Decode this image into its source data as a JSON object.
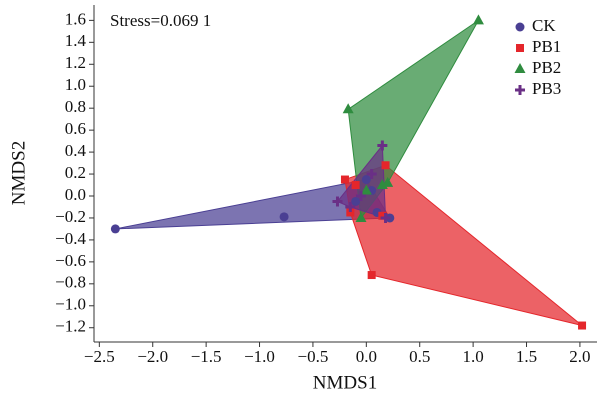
{
  "chart_data": {
    "type": "scatter",
    "annotation": "Stress=0.069 1",
    "x_label": "NMDS1",
    "y_label": "NMDS2",
    "hulls": true,
    "legend": "upper right",
    "xlim": [
      -2.55,
      2.16
    ],
    "ylim": [
      -1.33,
      1.74
    ],
    "xticks": [
      {
        "value": -2.5,
        "label": "−2.5"
      },
      {
        "value": -2.0,
        "label": "−2.0"
      },
      {
        "value": -1.5,
        "label": "−1.5"
      },
      {
        "value": -1.0,
        "label": "−1.0"
      },
      {
        "value": -0.5,
        "label": "−0.5"
      },
      {
        "value": 0,
        "label": "0.0"
      },
      {
        "value": 0.5,
        "label": "0.5"
      },
      {
        "value": 1.0,
        "label": "1.0"
      },
      {
        "value": 1.5,
        "label": "1.5"
      },
      {
        "value": 2.0,
        "label": "2.0"
      }
    ],
    "yticks": [
      {
        "value": 1.6,
        "label": "1.6"
      },
      {
        "value": 1.4,
        "label": "1.4"
      },
      {
        "value": 1.2,
        "label": "1.2"
      },
      {
        "value": 1.0,
        "label": "1.0"
      },
      {
        "value": 0.8,
        "label": "0.8"
      },
      {
        "value": 0.6,
        "label": "0.6"
      },
      {
        "value": 0.4,
        "label": "0.4"
      },
      {
        "value": 0.2,
        "label": "0.2"
      },
      {
        "value": 0,
        "label": "0.0"
      },
      {
        "value": -0.2,
        "label": "−0.2"
      },
      {
        "value": -0.4,
        "label": "−0.4"
      },
      {
        "value": -0.6,
        "label": "−0.6"
      },
      {
        "value": -0.8,
        "label": "−0.8"
      },
      {
        "value": -1.0,
        "label": "−1.0"
      },
      {
        "value": -1.2,
        "label": "−1.2"
      }
    ],
    "series": [
      {
        "name": "CK",
        "color": "#4a3f93",
        "marker": "circle",
        "x": [
          -2.35,
          -0.77,
          0.0,
          0.1,
          0.22,
          0.05,
          -0.1
        ],
        "y": [
          -0.3,
          -0.19,
          0.15,
          -0.15,
          -0.2,
          0.05,
          -0.05
        ]
      },
      {
        "name": "PB1",
        "color": "#e4262b",
        "marker": "square",
        "x": [
          2.02,
          0.05,
          -0.2,
          0.18,
          -0.15,
          0.15,
          -0.1
        ],
        "y": [
          -1.18,
          -0.72,
          0.15,
          0.28,
          -0.15,
          -0.18,
          0.1
        ]
      },
      {
        "name": "PB2",
        "color": "#2f8c3f",
        "marker": "triangle",
        "x": [
          1.05,
          -0.17,
          -0.05,
          0.15,
          0.0,
          0.2
        ],
        "y": [
          1.6,
          0.79,
          -0.2,
          0.1,
          0.05,
          0.12
        ]
      },
      {
        "name": "PB3",
        "color": "#6a2f86",
        "marker": "cross",
        "x": [
          0.15,
          -0.27,
          0.18,
          0.05,
          -0.05,
          -0.15
        ],
        "y": [
          0.46,
          -0.05,
          -0.2,
          0.2,
          0.0,
          -0.1
        ]
      }
    ]
  }
}
